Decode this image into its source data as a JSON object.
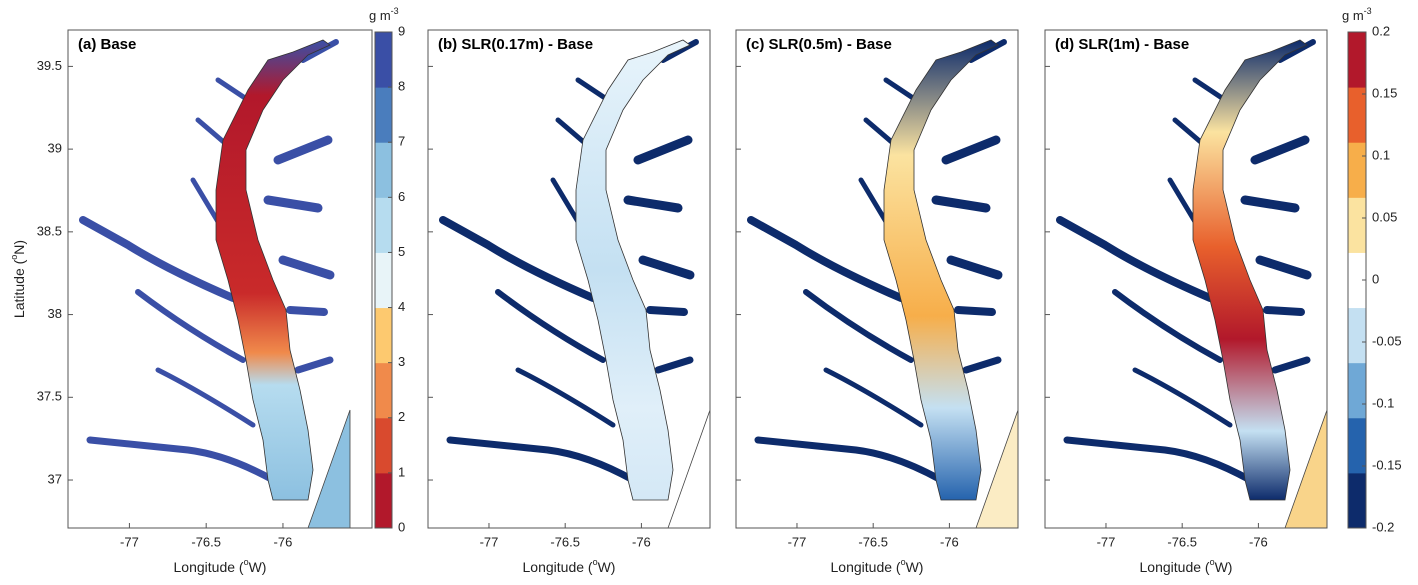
{
  "figure": {
    "ylim": [
      36.71,
      39.72
    ],
    "yticks": [
      37,
      37.5,
      38,
      38.5,
      39,
      39.5
    ],
    "xticks": [
      -77,
      -76.5,
      -76
    ],
    "xlabel": [
      "Longitude (",
      "o",
      "W)"
    ],
    "ylabel": [
      "Latitude (",
      "o",
      "N)"
    ],
    "panels": [
      {
        "title": "(a)  Base",
        "xlim": [
          -77.4,
          -75.42
        ]
      },
      {
        "title": "(b) SLR(0.17m) - Base",
        "xlim": [
          -77.4,
          -75.55
        ]
      },
      {
        "title": "(c) SLR(0.5m) - Base",
        "xlim": [
          -77.4,
          -75.55
        ]
      },
      {
        "title": "(d) SLR(1m) - Base",
        "xlim": [
          -77.4,
          -75.55
        ]
      }
    ],
    "colorbars": [
      {
        "unit": [
          "g m",
          "-3"
        ],
        "lim": [
          0,
          9
        ],
        "ticks": [
          0,
          1,
          2,
          3,
          4,
          5,
          6,
          7,
          8,
          9
        ],
        "colors": [
          "#b2182b",
          "#d94a2e",
          "#f08a4b",
          "#fdc96f",
          "#e8f4f8",
          "#b6dcef",
          "#8cc0e0",
          "#4a7dbd",
          "#3a4fa6"
        ]
      },
      {
        "unit": [
          "g m",
          "-3"
        ],
        "lim": [
          -0.2,
          0.2
        ],
        "ticks": [
          -0.2,
          -0.15,
          -0.1,
          -0.05,
          0,
          0.05,
          0.1,
          0.15,
          0.2
        ],
        "colors": [
          "#0d2b6b",
          "#2563ad",
          "#6fa8d6",
          "#c4e0f2",
          "#ffffff",
          "#fbe3a0",
          "#f7ae4a",
          "#e8602c",
          "#b2182b"
        ]
      }
    ]
  }
}
